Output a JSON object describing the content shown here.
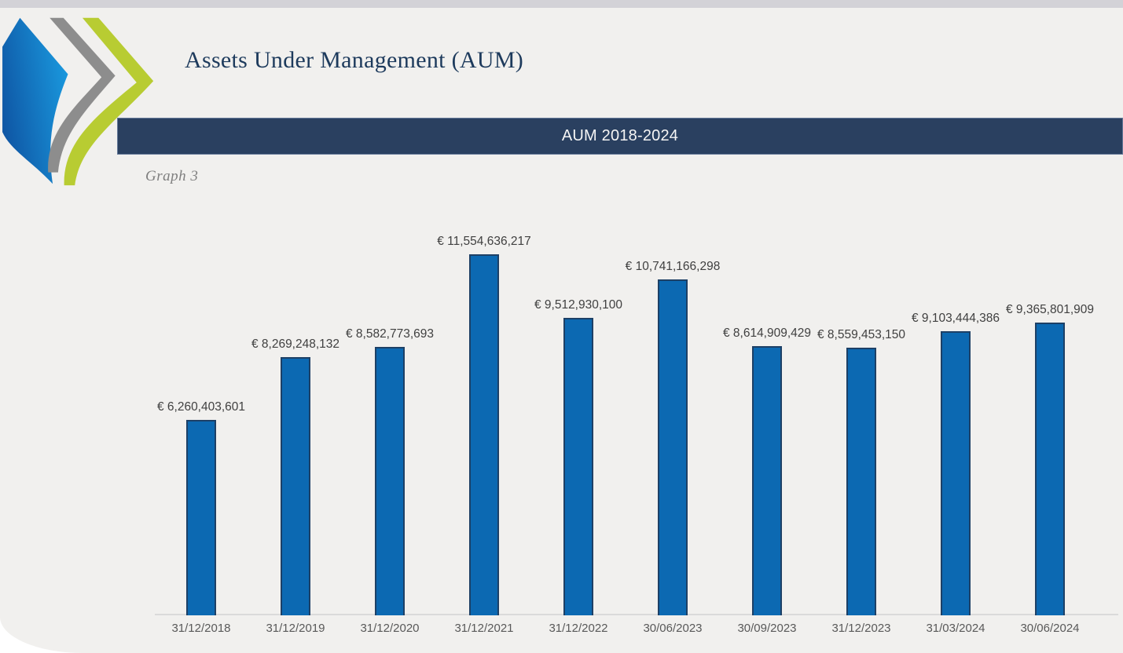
{
  "page": {
    "title": "Assets Under Management (AUM)",
    "banner": "AUM 2018-2024",
    "caption": "Graph 3"
  },
  "logo": {
    "name": "triple-chevron-logo",
    "gradient_start": "#0f57a5",
    "gradient_end": "#1a9be0",
    "gray": "#8d8d8d",
    "green": "#b8cc32"
  },
  "colors": {
    "top_strip": "#d3d2d7",
    "page_background": "#f1f0ee",
    "banner_background": "#2a4060",
    "title_text": "#1d3a5c",
    "axis_line": "#dadada"
  },
  "chart_data": {
    "type": "bar",
    "title": "AUM 2018-2024",
    "xlabel": "",
    "ylabel": "",
    "grid": false,
    "legend": "none",
    "ylim": [
      0,
      11554636217
    ],
    "currency": "EUR",
    "categories": [
      "31/12/2018",
      "31/12/2019",
      "31/12/2020",
      "31/12/2021",
      "31/12/2022",
      "30/06/2023",
      "30/09/2023",
      "31/12/2023",
      "31/03/2024",
      "30/06/2024"
    ],
    "values": [
      6260403601,
      8269248132,
      8582773693,
      11554636217,
      9512930100,
      10741166298,
      8614909429,
      8559453150,
      9103444386,
      9365801909
    ],
    "labels": [
      "€ 6,260,403,601",
      "€ 8,269,248,132",
      "€ 8,582,773,693",
      "€ 11,554,636,217",
      "€ 9,512,930,100",
      "€ 10,741,166,298",
      "€ 8,614,909,429",
      "€ 8,559,453,150",
      "€ 9,103,444,386",
      "€ 9,365,801,909"
    ],
    "bar_color": "#0c69b2",
    "bar_border_color": "#1d4066",
    "value_label_color": "#404040",
    "axis_label_color": "#595959"
  }
}
